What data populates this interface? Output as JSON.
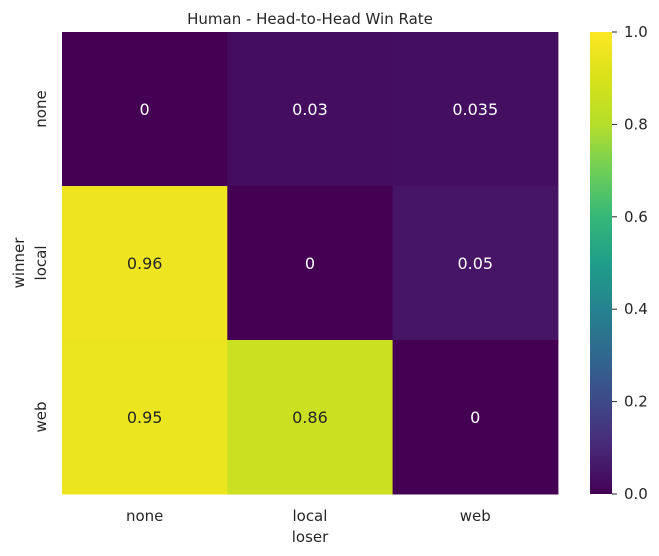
{
  "chart_data": {
    "type": "heatmap",
    "title": "Human - Head-to-Head Win Rate",
    "xlabel": "loser",
    "ylabel": "winner",
    "x_categories": [
      "none",
      "local",
      "web"
    ],
    "y_categories": [
      "none",
      "local",
      "web"
    ],
    "values": [
      [
        0,
        0.03,
        0.035
      ],
      [
        0.96,
        0,
        0.05
      ],
      [
        0.95,
        0.86,
        0
      ]
    ],
    "cell_labels": [
      [
        "0",
        "0.03",
        "0.035"
      ],
      [
        "0.96",
        "0",
        "0.05"
      ],
      [
        "0.95",
        "0.86",
        "0"
      ]
    ],
    "colorbar": {
      "colormap": "viridis",
      "range": [
        0.0,
        1.0
      ],
      "ticks": [
        "0.0",
        "0.2",
        "0.4",
        "0.6",
        "0.8",
        "1.0"
      ],
      "tick_values": [
        0.0,
        0.2,
        0.4,
        0.6,
        0.8,
        1.0
      ]
    }
  }
}
